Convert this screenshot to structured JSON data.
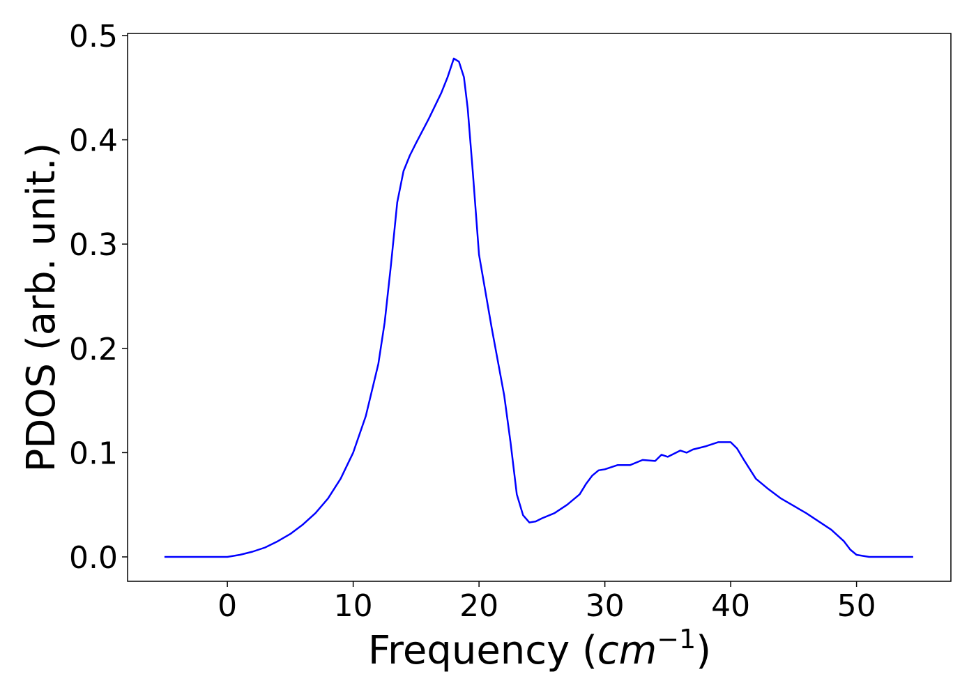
{
  "chart_data": {
    "type": "line",
    "x_label": [
      "Frequency (",
      "cm",
      "−1",
      ")"
    ],
    "y_label": "PDOS (arb. unit.)",
    "x": [
      -5,
      0,
      1,
      2,
      3,
      4,
      5,
      6,
      7,
      8,
      9,
      10,
      11,
      12,
      12.5,
      13,
      13.5,
      14,
      14.5,
      15,
      16,
      17,
      17.5,
      18,
      18.4,
      18.8,
      19.1,
      19.5,
      20,
      21,
      22,
      22.5,
      23,
      23.5,
      24,
      24.5,
      25,
      26,
      27,
      28,
      28.5,
      29,
      29.5,
      30,
      31,
      32,
      33,
      34,
      34.5,
      35,
      35.5,
      36,
      36.5,
      37,
      38,
      39,
      40,
      40.5,
      41,
      42,
      43,
      44,
      46,
      48,
      49,
      49.5,
      50,
      51,
      54.5
    ],
    "series": [
      {
        "color": "#0000ff",
        "values": [
          0,
          0,
          0.002,
          0.005,
          0.009,
          0.015,
          0.022,
          0.031,
          0.042,
          0.056,
          0.075,
          0.1,
          0.135,
          0.185,
          0.225,
          0.28,
          0.34,
          0.37,
          0.385,
          0.397,
          0.42,
          0.445,
          0.46,
          0.478,
          0.475,
          0.46,
          0.43,
          0.37,
          0.29,
          0.22,
          0.155,
          0.11,
          0.06,
          0.04,
          0.033,
          0.034,
          0.037,
          0.042,
          0.05,
          0.06,
          0.07,
          0.078,
          0.083,
          0.084,
          0.088,
          0.088,
          0.093,
          0.092,
          0.098,
          0.096,
          0.099,
          0.102,
          0.1,
          0.103,
          0.106,
          0.11,
          0.11,
          0.104,
          0.094,
          0.075,
          0.065,
          0.056,
          0.042,
          0.026,
          0.015,
          0.007,
          0.002,
          0,
          0
        ]
      }
    ],
    "xlim": [
      -7.93,
      57.5
    ],
    "ylim": [
      -0.0234,
      0.502
    ],
    "xticks": [
      0,
      10,
      20,
      30,
      40,
      50
    ],
    "yticks": [
      {
        "value": 0,
        "label": "0.0"
      },
      0.1,
      0.2,
      0.3,
      0.4,
      0.5
    ]
  }
}
